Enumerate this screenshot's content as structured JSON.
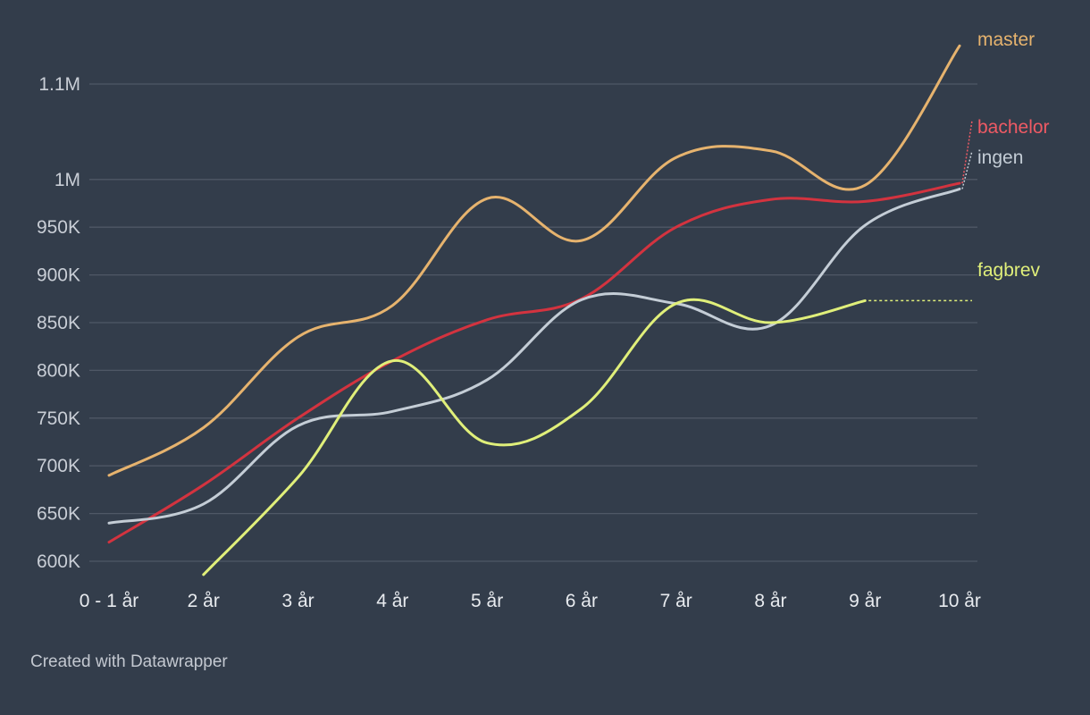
{
  "chart_data": {
    "type": "line",
    "title": "",
    "xlabel": "",
    "ylabel": "",
    "categories": [
      "0 - 1 år",
      "2 år",
      "3 år",
      "4 år",
      "5 år",
      "6 år",
      "7 år",
      "8 år",
      "9 år",
      "10 år"
    ],
    "y_ticks": [
      600000,
      650000,
      700000,
      750000,
      800000,
      850000,
      900000,
      950000,
      1000000,
      1100000
    ],
    "y_tick_labels": [
      "600K",
      "650K",
      "700K",
      "750K",
      "800K",
      "850K",
      "900K",
      "950K",
      "1M",
      "1.1M"
    ],
    "ylim": [
      600000,
      1150000
    ],
    "grid": true,
    "legend": "direct labels at line ends",
    "series": [
      {
        "name": "master",
        "color": "#e6b36e",
        "values": [
          690000,
          740000,
          835000,
          868000,
          980000,
          936000,
          1023000,
          1030000,
          994000,
          1140000
        ]
      },
      {
        "name": "bachelor",
        "color": "#d3333f",
        "label_color": "#ef5a64",
        "values": [
          620000,
          680000,
          750000,
          810000,
          853000,
          875000,
          950000,
          979000,
          977000,
          996000
        ]
      },
      {
        "name": "ingen",
        "color": "#c4cdd6",
        "values": [
          640000,
          660000,
          742000,
          757000,
          790000,
          874000,
          870000,
          847000,
          952000,
          990000
        ]
      },
      {
        "name": "fagbrev",
        "color": "#e0ef7a",
        "values": [
          null,
          586000,
          688000,
          810000,
          724000,
          760000,
          870000,
          850000,
          873000,
          null
        ]
      }
    ]
  },
  "footer": {
    "credit": "Created with Datawrapper"
  }
}
